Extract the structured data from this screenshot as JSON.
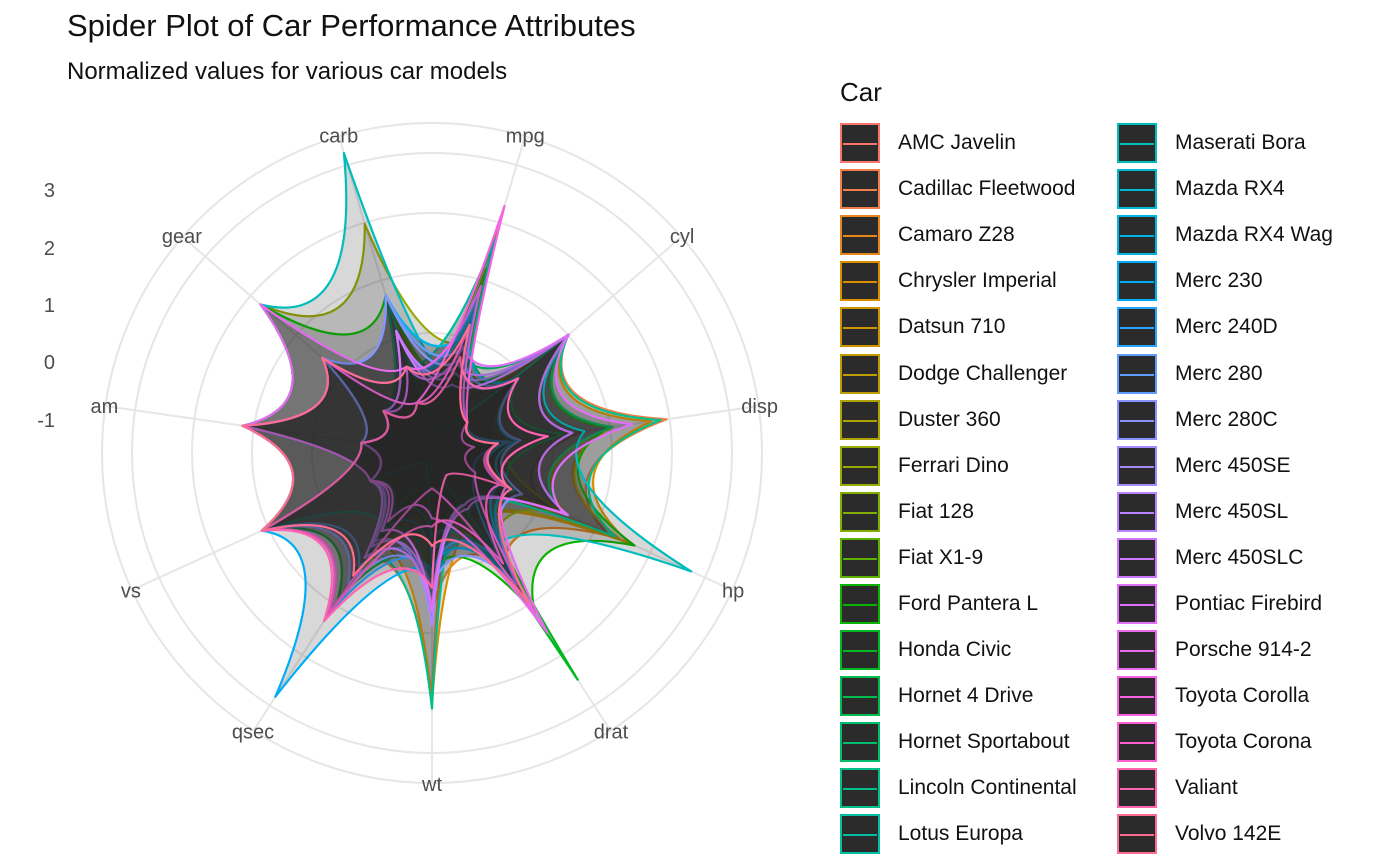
{
  "title": "Spider Plot of Car Performance Attributes",
  "subtitle": "Normalized values for various car models",
  "chart_data": {
    "type": "radar",
    "title": "Spider Plot of Car Performance Attributes",
    "subtitle": "Normalized values for various car models",
    "axes": [
      "mpg",
      "cyl",
      "disp",
      "hp",
      "drat",
      "wt",
      "qsec",
      "vs",
      "am",
      "gear",
      "carb"
    ],
    "radial_ticks": [
      -1,
      0,
      1,
      2,
      3
    ],
    "rlim": [
      -2,
      3.5
    ],
    "grid": true,
    "legend": {
      "title": "Car",
      "placement": "right"
    },
    "series": [
      {
        "name": "AMC Javelin",
        "color": "#F8766D",
        "values": [
          -0.76,
          1.01,
          0.59,
          0.05,
          -0.84,
          0.22,
          -0.31,
          -0.87,
          -0.81,
          -0.93,
          -0.5
        ]
      },
      {
        "name": "Cadillac Fleetwood",
        "color": "#F07F4C",
        "values": [
          -1.61,
          1.01,
          1.95,
          1.2,
          -1.25,
          2.08,
          0.07,
          -0.87,
          -0.81,
          -0.93,
          0.74
        ]
      },
      {
        "name": "Camaro Z28",
        "color": "#E7861B",
        "values": [
          -1.13,
          1.01,
          0.97,
          1.43,
          0.25,
          0.64,
          -1.37,
          -0.87,
          -0.81,
          -0.93,
          0.74
        ]
      },
      {
        "name": "Chrysler Imperial",
        "color": "#DB8E00",
        "values": [
          -0.89,
          1.01,
          1.69,
          1.63,
          -0.69,
          2.17,
          -0.24,
          -0.87,
          -0.81,
          -0.93,
          0.74
        ]
      },
      {
        "name": "Datsun 710",
        "color": "#CF9400",
        "values": [
          0.45,
          -1.22,
          -0.99,
          -0.78,
          0.47,
          -0.92,
          0.43,
          1.12,
          1.19,
          0.42,
          -1.12
        ]
      },
      {
        "name": "Dodge Challenger",
        "color": "#BF9C00",
        "values": [
          -0.76,
          1.01,
          1.04,
          0.49,
          -1.56,
          0.31,
          -0.55,
          -0.87,
          -0.81,
          -0.93,
          -0.5
        ]
      },
      {
        "name": "Duster 360",
        "color": "#ADA200",
        "values": [
          -0.96,
          1.01,
          1.04,
          1.43,
          -0.72,
          0.36,
          -1.12,
          -0.87,
          -0.81,
          -0.93,
          0.74
        ]
      },
      {
        "name": "Ferrari Dino",
        "color": "#98A900",
        "values": [
          -0.06,
          -0.1,
          -0.69,
          0.41,
          0.04,
          -0.45,
          -1.31,
          -0.87,
          1.19,
          1.78,
          1.98
        ]
      },
      {
        "name": "Fiat 128",
        "color": "#80AD00",
        "values": [
          2.04,
          -1.22,
          -1.23,
          -1.19,
          0.9,
          -1.04,
          0.9,
          1.12,
          1.19,
          0.42,
          -1.12
        ]
      },
      {
        "name": "Fiat X1-9",
        "color": "#5DB100",
        "values": [
          1.2,
          -1.22,
          -1.22,
          -1.19,
          0.9,
          -1.31,
          0.59,
          1.12,
          1.19,
          0.42,
          -1.12
        ]
      },
      {
        "name": "Ford Pantera L",
        "color": "#0BB400",
        "values": [
          -0.71,
          1.01,
          0.97,
          1.71,
          1.17,
          -0.05,
          -1.87,
          -0.87,
          1.19,
          1.78,
          0.74
        ]
      },
      {
        "name": "Honda Civic",
        "color": "#00B81F",
        "values": [
          1.71,
          -1.22,
          -1.25,
          -1.38,
          2.49,
          -1.64,
          0.43,
          1.12,
          1.19,
          0.42,
          -0.5
        ]
      },
      {
        "name": "Hornet 4 Drive",
        "color": "#00BB4E",
        "values": [
          0.22,
          -0.1,
          0.22,
          -0.54,
          -0.97,
          -0.0,
          0.89,
          1.12,
          -0.81,
          -0.93,
          -1.12
        ]
      },
      {
        "name": "Hornet Sportabout",
        "color": "#00BD6E",
        "values": [
          -0.23,
          1.01,
          1.04,
          0.41,
          -0.84,
          0.23,
          -0.46,
          -0.87,
          -0.81,
          -0.93,
          -0.5
        ]
      },
      {
        "name": "Lincoln Continental",
        "color": "#00BF8B",
        "values": [
          -1.61,
          1.01,
          1.85,
          1.35,
          -1.12,
          2.26,
          -0.02,
          -0.87,
          -0.81,
          -0.93,
          0.74
        ]
      },
      {
        "name": "Lotus Europa",
        "color": "#00BFA5",
        "values": [
          1.71,
          -1.22,
          -1.09,
          -0.49,
          0.32,
          -1.74,
          -0.53,
          1.12,
          1.19,
          1.78,
          -0.5
        ]
      },
      {
        "name": "Maserati Bora",
        "color": "#00BDBD",
        "values": [
          -0.84,
          1.01,
          0.57,
          2.75,
          -0.11,
          0.36,
          -1.82,
          -0.87,
          1.19,
          1.78,
          3.21
        ]
      },
      {
        "name": "Mazda RX4",
        "color": "#00BAD3",
        "values": [
          0.15,
          -0.1,
          -0.57,
          -0.54,
          0.57,
          -0.61,
          -0.78,
          -0.87,
          1.19,
          0.42,
          0.74
        ]
      },
      {
        "name": "Mazda RX4 Wag",
        "color": "#00B5E6",
        "values": [
          0.15,
          -0.1,
          -0.57,
          -0.54,
          0.57,
          -0.35,
          -0.46,
          -0.87,
          1.19,
          0.42,
          0.74
        ]
      },
      {
        "name": "Merc 230",
        "color": "#00AEF8",
        "values": [
          0.45,
          -1.22,
          -0.73,
          -0.74,
          0.6,
          -0.07,
          2.83,
          1.12,
          -0.81,
          0.42,
          -0.5
        ]
      },
      {
        "name": "Merc 240D",
        "color": "#27A5FF",
        "values": [
          0.72,
          -1.22,
          -0.68,
          -1.2,
          0.17,
          -0.03,
          1.2,
          1.12,
          -0.81,
          0.42,
          -0.5
        ]
      },
      {
        "name": "Merc 280",
        "color": "#619CFF",
        "values": [
          -0.15,
          -0.1,
          -0.51,
          -0.35,
          0.6,
          0.23,
          0.25,
          1.12,
          -0.81,
          0.42,
          0.74
        ]
      },
      {
        "name": "Merc 280C",
        "color": "#8893FF",
        "values": [
          -0.38,
          -0.1,
          -0.51,
          -0.35,
          0.6,
          0.23,
          0.59,
          1.12,
          -0.81,
          0.42,
          0.74
        ]
      },
      {
        "name": "Merc 450SE",
        "color": "#A589FF",
        "values": [
          -0.61,
          1.01,
          0.36,
          0.49,
          -0.98,
          0.87,
          -0.25,
          -0.87,
          -0.81,
          -0.93,
          0.12
        ]
      },
      {
        "name": "Merc 450SL",
        "color": "#BC81FF",
        "values": [
          -0.46,
          1.01,
          0.36,
          0.49,
          -0.98,
          0.52,
          -0.14,
          -0.87,
          -0.81,
          -0.93,
          0.12
        ]
      },
      {
        "name": "Merc 450SLC",
        "color": "#CF78FF",
        "values": [
          -0.81,
          1.01,
          0.36,
          0.49,
          -0.98,
          0.58,
          0.08,
          -0.87,
          -0.81,
          -0.93,
          0.12
        ]
      },
      {
        "name": "Pontiac Firebird",
        "color": "#E06FF9",
        "values": [
          -0.15,
          1.01,
          1.37,
          0.41,
          -0.89,
          0.65,
          -0.45,
          -0.87,
          -0.81,
          -0.93,
          -0.5
        ]
      },
      {
        "name": "Porsche 914-2",
        "color": "#EC69EF",
        "values": [
          0.9,
          -1.22,
          -0.89,
          -0.64,
          1.56,
          -0.91,
          -0.64,
          -0.87,
          1.19,
          1.78,
          -0.5
        ]
      },
      {
        "name": "Toyota Corolla",
        "color": "#F763E0",
        "values": [
          2.29,
          -1.22,
          -1.29,
          -1.21,
          1.17,
          -1.41,
          1.15,
          1.12,
          1.19,
          0.42,
          -1.12
        ]
      },
      {
        "name": "Toyota Corona",
        "color": "#FD61D1",
        "values": [
          0.23,
          -1.22,
          -0.89,
          -0.74,
          0.19,
          -0.77,
          1.21,
          1.12,
          -0.81,
          -0.93,
          -1.12
        ]
      },
      {
        "name": "Valiant",
        "color": "#FF64B0",
        "values": [
          -0.33,
          -0.1,
          -0.05,
          -0.61,
          -1.56,
          0.25,
          1.33,
          1.12,
          -0.81,
          -0.93,
          -1.12
        ]
      },
      {
        "name": "Volvo 142E",
        "color": "#FF6C91",
        "values": [
          0.22,
          -1.22,
          -0.89,
          -0.55,
          0.96,
          -0.45,
          0.43,
          1.12,
          1.19,
          0.42,
          -0.5
        ]
      }
    ]
  }
}
